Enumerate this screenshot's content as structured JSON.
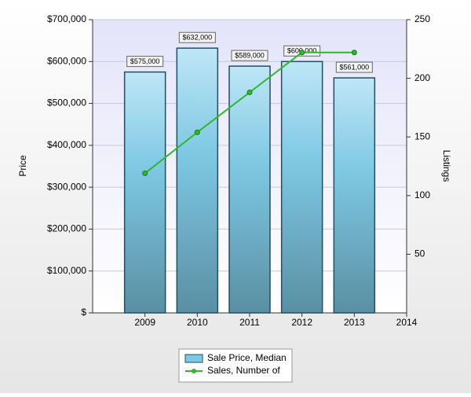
{
  "chart_data": {
    "type": "bar",
    "x": [
      2009,
      2010,
      2011,
      2012,
      2013
    ],
    "series": [
      {
        "name": "Sale Price, Median",
        "type": "bar",
        "color": "#7ec8e3",
        "values": [
          575000,
          632000,
          589000,
          600000,
          561000
        ],
        "value_labels": [
          "$575,000",
          "$632,000",
          "$589,000",
          "$600,000",
          "$561,000"
        ]
      },
      {
        "name": "Sales, Number of",
        "type": "line",
        "axis": "y2",
        "color": "#2db82d",
        "values": [
          119,
          154,
          188,
          222,
          222
        ]
      }
    ],
    "xlim": [
      2008,
      2014
    ],
    "xticks": [
      2009,
      2010,
      2011,
      2012,
      2013,
      2014
    ],
    "ylim": [
      0,
      700000
    ],
    "yticks": [
      {
        "value": 0,
        "label": "$"
      },
      {
        "value": 100000,
        "label": "$100,000"
      },
      {
        "value": 200000,
        "label": "$200,000"
      },
      {
        "value": 300000,
        "label": "$300,000"
      },
      {
        "value": 400000,
        "label": "$400,000"
      },
      {
        "value": 500000,
        "label": "$500,000"
      },
      {
        "value": 600000,
        "label": "$600,000"
      },
      {
        "value": 700000,
        "label": "$700,000"
      }
    ],
    "y2lim": [
      0,
      250
    ],
    "y2ticks": [
      50,
      100,
      150,
      200,
      250
    ],
    "ylabel": "Price",
    "y2label": "Listings",
    "grid": true,
    "legend": "bottom"
  }
}
